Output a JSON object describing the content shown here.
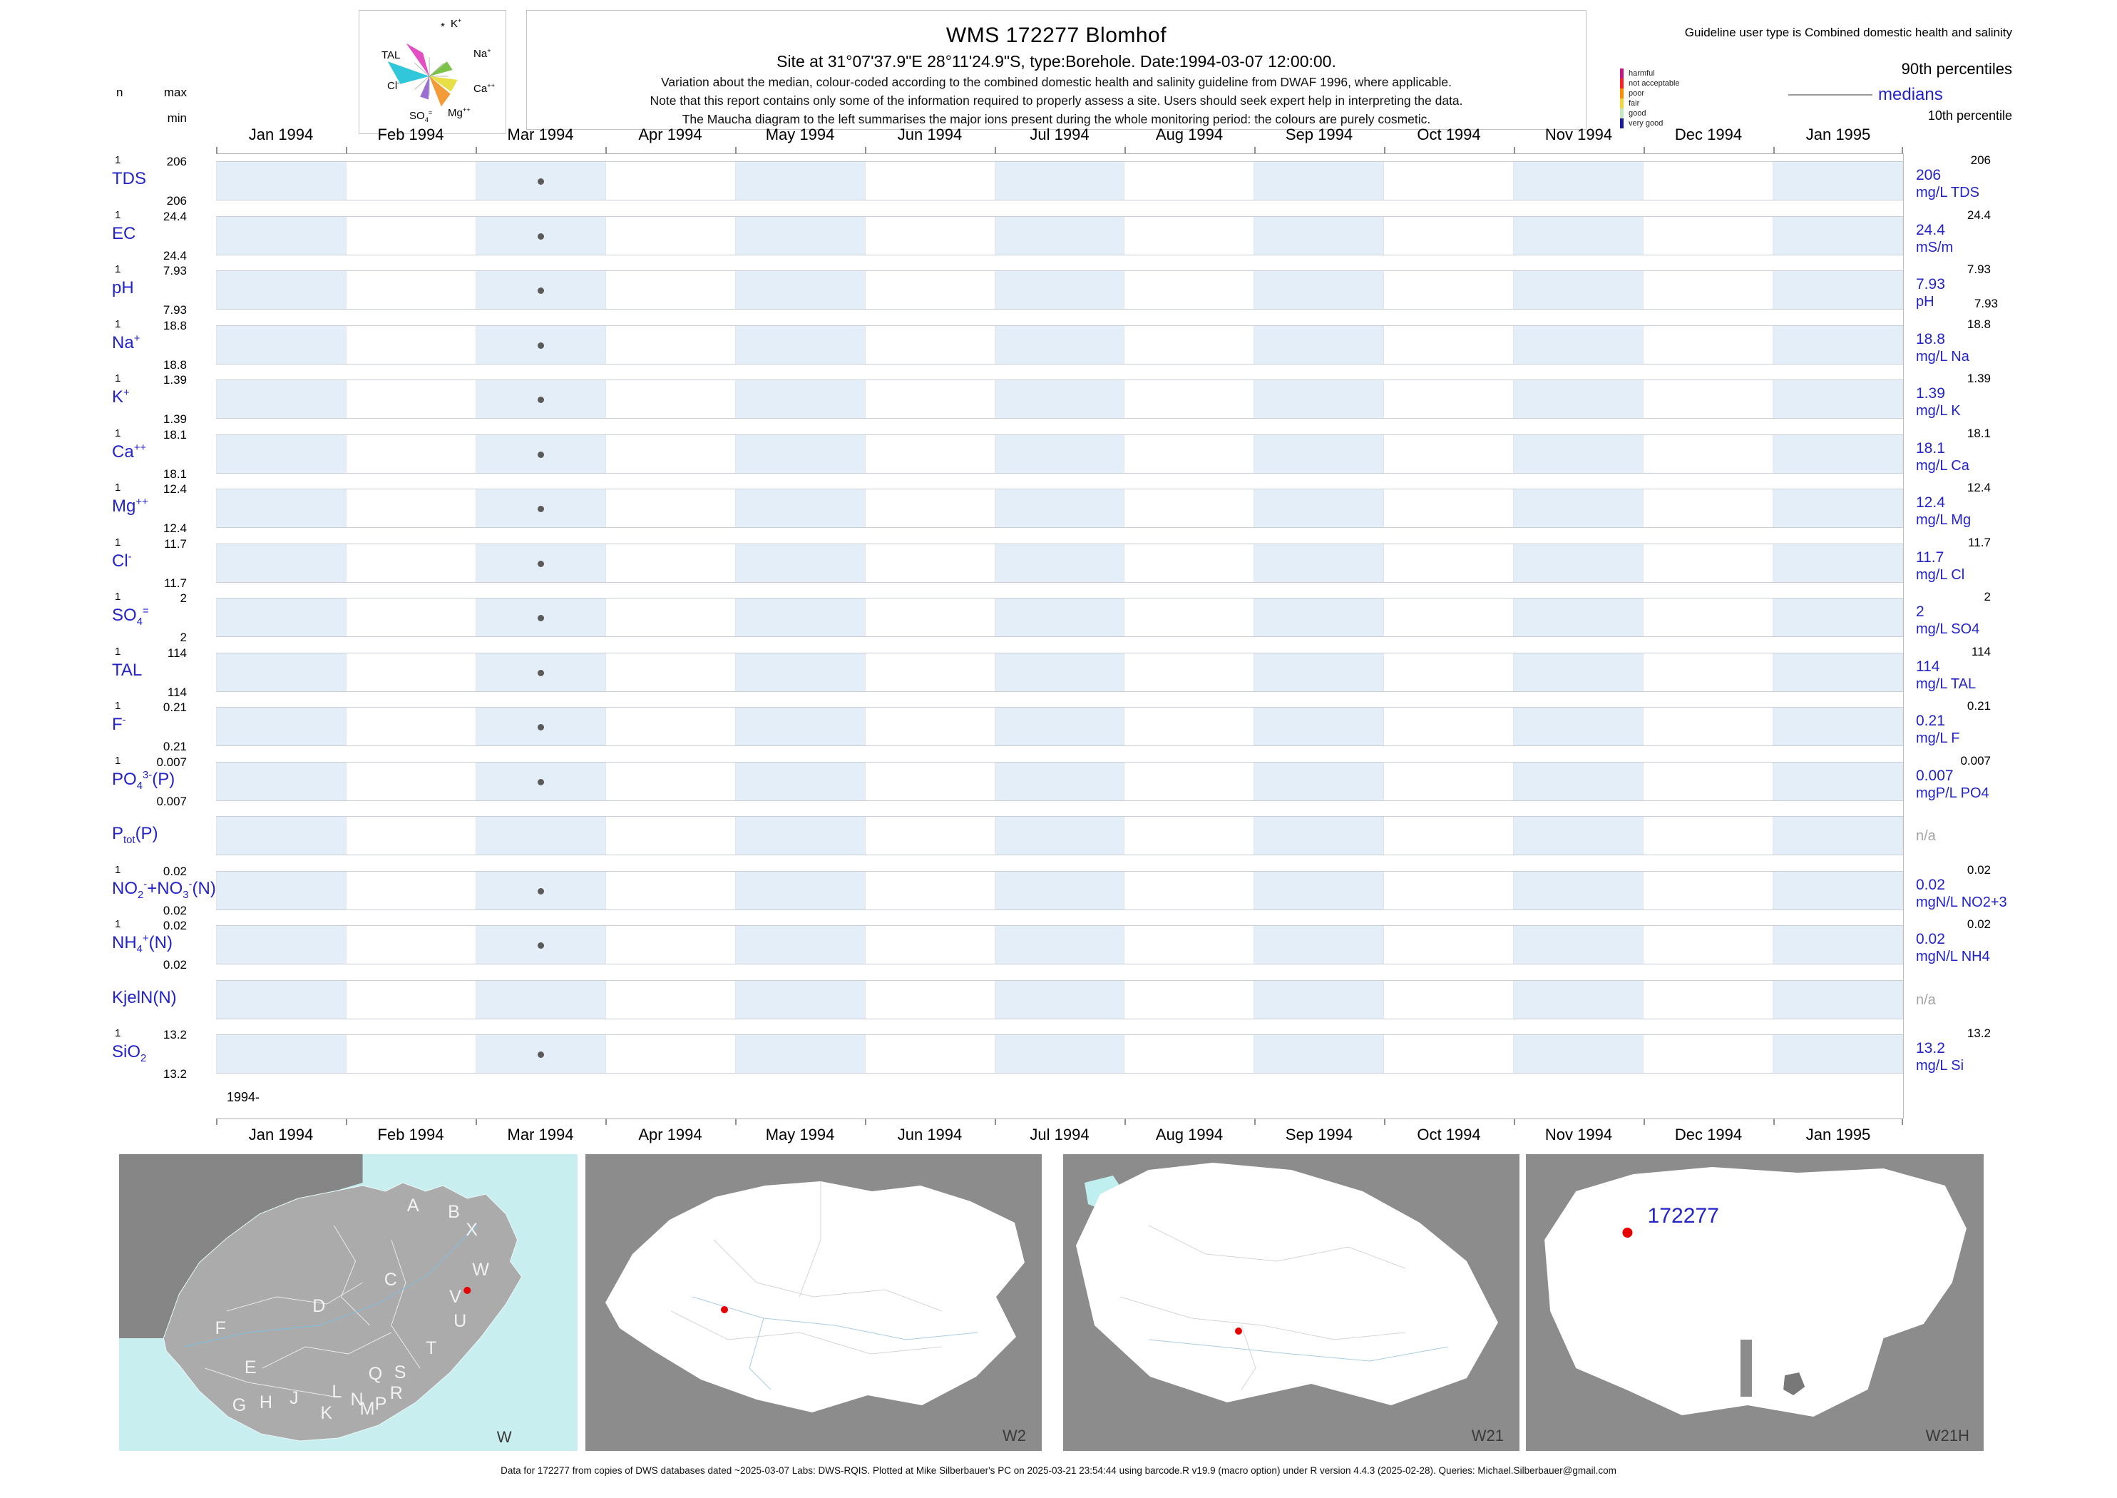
{
  "colors": {
    "accent_blue": "#2323C8",
    "band_blue": "#E3EEF8",
    "na_gray": "#A3A3A3",
    "dot_gray": "#5A5A5A",
    "site_marker_red": "#E60000"
  },
  "header": {
    "title": "WMS 172277  Blomhof",
    "site_line": "Site at 31°07'37.9\"E 28°11'24.9\"S, type:Borehole. Date:1994-03-07 12:00:00.",
    "note1": "Variation about the median,  colour-coded according to the combined domestic health and salinity guideline from DWAF 1996, where applicable.",
    "note2": "Note that this report contains only some of the information required to properly assess a site. Users should seek expert help in interpreting the data.",
    "note3": "The Maucha diagram to the left summarises the major ions present during the whole monitoring period: the colours are purely cosmetic."
  },
  "stats_header": {
    "n": "n",
    "max": "max",
    "min": "min"
  },
  "maucha": {
    "star": "*",
    "k": "K^+^",
    "na": "Na^+^",
    "ca": "Ca^++^",
    "mg": "Mg^++^",
    "so4": "SO~4~^=^",
    "cl": "Cl^-^",
    "tal": "TAL"
  },
  "guideline": {
    "user_type": "Guideline user type is Combined domestic health and salinity",
    "classes": [
      {
        "label": "harmful",
        "color": "#C71585"
      },
      {
        "label": "not acceptable",
        "color": "#FF2020"
      },
      {
        "label": "poor",
        "color": "#FF8C00"
      },
      {
        "label": "fair",
        "color": "#F2D43C"
      },
      {
        "label": "good",
        "color": "#C2E8C2"
      },
      {
        "label": "very good",
        "color": "#1A1AA0"
      }
    ],
    "p90_label": "90th percentiles",
    "median_label": "medians",
    "p10_label": "10th percentile"
  },
  "months": [
    "Jan 1994",
    "Feb 1994",
    "Mar 1994",
    "Apr 1994",
    "May 1994",
    "Jun 1994",
    "Jul 1994",
    "Aug 1994",
    "Sep 1994",
    "Oct 1994",
    "Nov 1994",
    "Dec 1994",
    "Jan 1995"
  ],
  "year_label": "1994-",
  "chart_data": {
    "type": "scatter",
    "title": "WMS 172277 Blomhof",
    "site": "31°07'37.9\"E 28°11'24.9\"S",
    "site_type": "Borehole",
    "sample_date": "1994-03-07 12:00:00",
    "sample_month_index": 2,
    "x_labels": [
      "Jan 1994",
      "Feb 1994",
      "Mar 1994",
      "Apr 1994",
      "May 1994",
      "Jun 1994",
      "Jul 1994",
      "Aug 1994",
      "Sep 1994",
      "Oct 1994",
      "Nov 1994",
      "Dec 1994",
      "Jan 1995"
    ],
    "x_range": [
      "Jan 1994",
      "Jan 1995"
    ],
    "series": [
      {
        "name": "TDS",
        "name_fmt": "TDS",
        "unit": "mg/L TDS",
        "n": 1,
        "max": 206,
        "min": 206,
        "median": 206,
        "p90": 206,
        "sample_value": 206,
        "has_data": true
      },
      {
        "name": "EC",
        "name_fmt": "EC",
        "unit": "mS/m",
        "n": 1,
        "max": 24.4,
        "min": 24.4,
        "median": 24.4,
        "p90": 24.4,
        "sample_value": 24.4,
        "has_data": true
      },
      {
        "name": "pH",
        "name_fmt": "pH",
        "unit": "pH",
        "n": 1,
        "max": 7.93,
        "min": 7.93,
        "median": 7.93,
        "p90": 7.93,
        "p10": 7.93,
        "p10_shown": true,
        "sample_value": 7.93,
        "has_data": true
      },
      {
        "name": "Na+",
        "name_fmt": "Na^+^",
        "unit": "mg/L Na",
        "n": 1,
        "max": 18.8,
        "min": 18.8,
        "median": 18.8,
        "p90": 18.8,
        "sample_value": 18.8,
        "has_data": true
      },
      {
        "name": "K+",
        "name_fmt": "K^+^",
        "unit": "mg/L K",
        "n": 1,
        "max": 1.39,
        "min": 1.39,
        "median": 1.39,
        "p90": 1.39,
        "sample_value": 1.39,
        "has_data": true
      },
      {
        "name": "Ca++",
        "name_fmt": "Ca^++^",
        "unit": "mg/L Ca",
        "n": 1,
        "max": 18.1,
        "min": 18.1,
        "median": 18.1,
        "p90": 18.1,
        "sample_value": 18.1,
        "has_data": true
      },
      {
        "name": "Mg++",
        "name_fmt": "Mg^++^",
        "unit": "mg/L Mg",
        "n": 1,
        "max": 12.4,
        "min": 12.4,
        "median": 12.4,
        "p90": 12.4,
        "sample_value": 12.4,
        "has_data": true
      },
      {
        "name": "Cl-",
        "name_fmt": "Cl^-^",
        "unit": "mg/L Cl",
        "n": 1,
        "max": 11.7,
        "min": 11.7,
        "median": 11.7,
        "p90": 11.7,
        "sample_value": 11.7,
        "has_data": true
      },
      {
        "name": "SO4=",
        "name_fmt": "SO~4~^=^",
        "unit": "mg/L SO4",
        "n": 1,
        "max": 2,
        "min": 2,
        "median": 2,
        "p90": 2,
        "sample_value": 2,
        "has_data": true
      },
      {
        "name": "TAL",
        "name_fmt": "TAL",
        "unit": "mg/L TAL",
        "n": 1,
        "max": 114,
        "min": 114,
        "median": 114,
        "p90": 114,
        "sample_value": 114,
        "has_data": true
      },
      {
        "name": "F-",
        "name_fmt": "F^-^",
        "unit": "mg/L F",
        "n": 1,
        "max": 0.21,
        "min": 0.21,
        "median": 0.21,
        "p90": 0.21,
        "sample_value": 0.21,
        "has_data": true
      },
      {
        "name": "PO43-(P)",
        "name_fmt": "PO~4~^3-^(P)",
        "unit": "mgP/L PO4",
        "n": 1,
        "max": 0.007,
        "min": 0.007,
        "median": 0.007,
        "p90": 0.007,
        "sample_value": 0.007,
        "has_data": true
      },
      {
        "name": "Ptot(P)",
        "name_fmt": "P~tot~(P)",
        "na_text": "n/a",
        "has_data": false
      },
      {
        "name": "NO2-+NO3-(N)",
        "name_fmt": "NO~2~^-^+NO~3~^-^(N)",
        "unit": "mgN/L NO2+3",
        "n": 1,
        "max": 0.02,
        "min": 0.02,
        "median": 0.02,
        "p90": 0.02,
        "sample_value": 0.02,
        "has_data": true
      },
      {
        "name": "NH4+(N)",
        "name_fmt": "NH~4~^+^(N)",
        "unit": "mgN/L NH4",
        "n": 1,
        "max": 0.02,
        "min": 0.02,
        "median": 0.02,
        "p90": 0.02,
        "sample_value": 0.02,
        "has_data": true
      },
      {
        "name": "KjelN(N)",
        "name_fmt": "KjelN(N)",
        "na_text": "n/a",
        "has_data": false
      },
      {
        "name": "SiO2",
        "name_fmt": "SiO~2~",
        "unit": "mg/L Si",
        "n": 1,
        "max": 13.2,
        "min": 13.2,
        "median": 13.2,
        "p90": 13.2,
        "sample_value": 13.2,
        "has_data": true
      }
    ]
  },
  "maps": {
    "panels": [
      {
        "label": "W",
        "region_letters": [
          "A",
          "B",
          "X",
          "W",
          "C",
          "V",
          "D",
          "U",
          "F",
          "E",
          "T",
          "Q",
          "S",
          "R",
          "L",
          "N",
          "M",
          "P",
          "G",
          "H",
          "J",
          "K"
        ]
      },
      {
        "label": "W2"
      },
      {
        "label": "W21"
      },
      {
        "label": "W21H",
        "site_label": "172277"
      }
    ]
  },
  "footer": "Data for 172277 from copies of DWS databases dated ~2025-03-07 Labs: DWS-RQIS. Plotted at Mike Silberbauer's PC on 2025-03-21 23:54:44 using barcode.R v19.9 (macro option) under R version 4.4.3 (2025-02-28). Queries: Michael.Silberbauer@gmail.com"
}
